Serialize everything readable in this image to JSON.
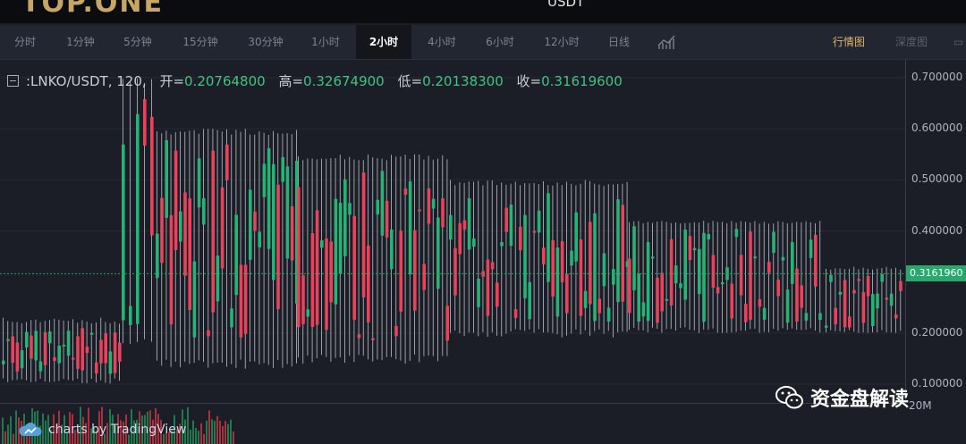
{
  "header": {
    "logo_text": "TOP.ONE",
    "pair": "USDT"
  },
  "toolbar": {
    "timeframes": [
      "分时",
      "1分钟",
      "5分钟",
      "15分钟",
      "30分钟",
      "1小时",
      "2小时",
      "4小时",
      "6小时",
      "12小时",
      "日线"
    ],
    "active_timeframe": "2小时",
    "views": [
      "行情图",
      "深度图"
    ],
    "active_view": "行情图",
    "active_view_color": "#e0b46a"
  },
  "legend": {
    "symbol": ":LNKO/USDT, 120,",
    "open_label": "开=",
    "open": "0.20764800",
    "high_label": "高=",
    "high": "0.32674900",
    "low_label": "低=",
    "low": "0.20138300",
    "close_label": "收=",
    "close": "0.31619600"
  },
  "price_axis": {
    "ticks": [
      "0.700000",
      "0.600000",
      "0.500000",
      "0.400000",
      "0.200000",
      "0.100000"
    ],
    "current_price": "0.3161960",
    "volume_label": "20M"
  },
  "branding": {
    "tradingview": "charts by TradingView",
    "watermark": "资金盘解读"
  },
  "colors": {
    "up": "#26b377",
    "down": "#e8425c",
    "wick": "#9aa0a8",
    "background": "#1b1e26"
  },
  "chart_data": {
    "type": "candlestick",
    "symbol": "LNKO/USDT",
    "interval": "120",
    "ylim": [
      0.05,
      0.7
    ],
    "y_ticks": [
      0.7,
      0.6,
      0.5,
      0.4,
      0.2,
      0.1
    ],
    "last_close": 0.316196,
    "segments": [
      {
        "range": "start",
        "low": 0.1,
        "high": 0.23,
        "body_low": 0.12,
        "body_high": 0.21
      },
      {
        "range": "spike",
        "low": 0.17,
        "high": 0.7,
        "body_low": 0.2,
        "body_high": 0.68
      },
      {
        "range": "plateau_1",
        "low": 0.13,
        "high": 0.6,
        "body_low": 0.16,
        "body_high": 0.58
      },
      {
        "range": "plateau_2",
        "low": 0.14,
        "high": 0.55,
        "body_low": 0.17,
        "body_high": 0.53
      },
      {
        "range": "plateau_3",
        "low": 0.19,
        "high": 0.5,
        "body_low": 0.22,
        "body_high": 0.48
      },
      {
        "range": "late",
        "low": 0.2,
        "high": 0.42,
        "body_low": 0.22,
        "body_high": 0.41
      },
      {
        "range": "end",
        "low": 0.2,
        "high": 0.33,
        "body_low": 0.21,
        "body_high": 0.32
      }
    ]
  }
}
